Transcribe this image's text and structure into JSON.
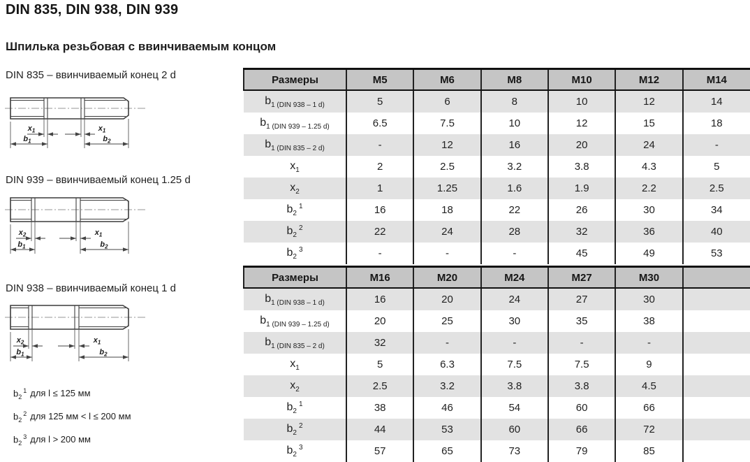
{
  "page": {
    "title": "DIN 835, DIN 938, DIN 939",
    "subtitle": "Шпилька резьбовая с ввинчиваемым концом"
  },
  "diagrams": [
    {
      "caption": "DIN 835 – ввинчиваемый конец 2 d",
      "dims": {
        "left_x": {
          "base": "x",
          "sub": "1"
        },
        "right_x": {
          "base": "x",
          "sub": "1"
        },
        "left_b": {
          "base": "b",
          "sub": "1"
        },
        "right_b": {
          "base": "b",
          "sub": "2"
        }
      }
    },
    {
      "caption": "DIN 939 – ввинчиваемый конец 1.25 d",
      "dims": {
        "left_x": {
          "base": "x",
          "sub": "2"
        },
        "right_x": {
          "base": "x",
          "sub": "1"
        },
        "left_b": {
          "base": "b",
          "sub": "1"
        },
        "right_b": {
          "base": "b",
          "sub": "2"
        }
      }
    },
    {
      "caption": "DIN 938 – ввинчиваемый конец 1 d",
      "dims": {
        "left_x": {
          "base": "x",
          "sub": "2"
        },
        "right_x": {
          "base": "x",
          "sub": "1"
        },
        "left_b": {
          "base": "b",
          "sub": "1"
        },
        "right_b": {
          "base": "b",
          "sub": "2"
        }
      }
    }
  ],
  "footnotes": [
    {
      "base": "b",
      "sub": "2",
      "sup": "1",
      "text": "для l ≤ 125 мм"
    },
    {
      "base": "b",
      "sub": "2",
      "sup": "2",
      "text": "для 125 мм < l ≤ 200 мм"
    },
    {
      "base": "b",
      "sub": "2",
      "sup": "3",
      "text": "для l > 200 мм"
    }
  ],
  "tables": [
    {
      "header_label": "Размеры",
      "columns": [
        "M5",
        "M6",
        "M8",
        "M10",
        "M12",
        "M14"
      ],
      "rows": [
        {
          "label": {
            "base": "b",
            "sub": "1 (DIN 938 – 1 d)",
            "sup": ""
          },
          "values": [
            "5",
            "6",
            "8",
            "10",
            "12",
            "14"
          ]
        },
        {
          "label": {
            "base": "b",
            "sub": "1 (DIN 939 – 1.25 d)",
            "sup": ""
          },
          "values": [
            "6.5",
            "7.5",
            "10",
            "12",
            "15",
            "18"
          ]
        },
        {
          "label": {
            "base": "b",
            "sub": "1 (DIN 835 – 2 d)",
            "sup": ""
          },
          "values": [
            "-",
            "12",
            "16",
            "20",
            "24",
            "-"
          ]
        },
        {
          "label": {
            "base": "x",
            "sub": "1",
            "sup": ""
          },
          "values": [
            "2",
            "2.5",
            "3.2",
            "3.8",
            "4.3",
            "5"
          ]
        },
        {
          "label": {
            "base": "x",
            "sub": "2",
            "sup": ""
          },
          "values": [
            "1",
            "1.25",
            "1.6",
            "1.9",
            "2.2",
            "2.5"
          ]
        },
        {
          "label": {
            "base": "b",
            "sub": "2",
            "sup": "1"
          },
          "values": [
            "16",
            "18",
            "22",
            "26",
            "30",
            "34"
          ]
        },
        {
          "label": {
            "base": "b",
            "sub": "2",
            "sup": "2"
          },
          "values": [
            "22",
            "24",
            "28",
            "32",
            "36",
            "40"
          ]
        },
        {
          "label": {
            "base": "b",
            "sub": "2",
            "sup": "3"
          },
          "values": [
            "-",
            "-",
            "-",
            "45",
            "49",
            "53"
          ]
        }
      ]
    },
    {
      "header_label": "Размеры",
      "columns": [
        "M16",
        "M20",
        "M24",
        "M27",
        "M30",
        ""
      ],
      "rows": [
        {
          "label": {
            "base": "b",
            "sub": "1 (DIN 938 – 1 d)",
            "sup": ""
          },
          "values": [
            "16",
            "20",
            "24",
            "27",
            "30",
            ""
          ]
        },
        {
          "label": {
            "base": "b",
            "sub": "1 (DIN 939 – 1.25 d)",
            "sup": ""
          },
          "values": [
            "20",
            "25",
            "30",
            "35",
            "38",
            ""
          ]
        },
        {
          "label": {
            "base": "b",
            "sub": "1 (DIN 835 – 2 d)",
            "sup": ""
          },
          "values": [
            "32",
            "-",
            "-",
            "-",
            "-",
            ""
          ]
        },
        {
          "label": {
            "base": "x",
            "sub": "1",
            "sup": ""
          },
          "values": [
            "5",
            "6.3",
            "7.5",
            "7.5",
            "9",
            ""
          ]
        },
        {
          "label": {
            "base": "x",
            "sub": "2",
            "sup": ""
          },
          "values": [
            "2.5",
            "3.2",
            "3.8",
            "3.8",
            "4.5",
            ""
          ]
        },
        {
          "label": {
            "base": "b",
            "sub": "2",
            "sup": "1"
          },
          "values": [
            "38",
            "46",
            "54",
            "60",
            "66",
            ""
          ]
        },
        {
          "label": {
            "base": "b",
            "sub": "2",
            "sup": "2"
          },
          "values": [
            "44",
            "53",
            "60",
            "66",
            "72",
            ""
          ]
        },
        {
          "label": {
            "base": "b",
            "sub": "2",
            "sup": "3"
          },
          "values": [
            "57",
            "65",
            "73",
            "79",
            "85",
            ""
          ]
        }
      ]
    }
  ],
  "colors": {
    "header_bg": "#c5c5c5",
    "row_shade": "#e2e2e2",
    "border": "#111111",
    "text": "#1c1c1c"
  }
}
